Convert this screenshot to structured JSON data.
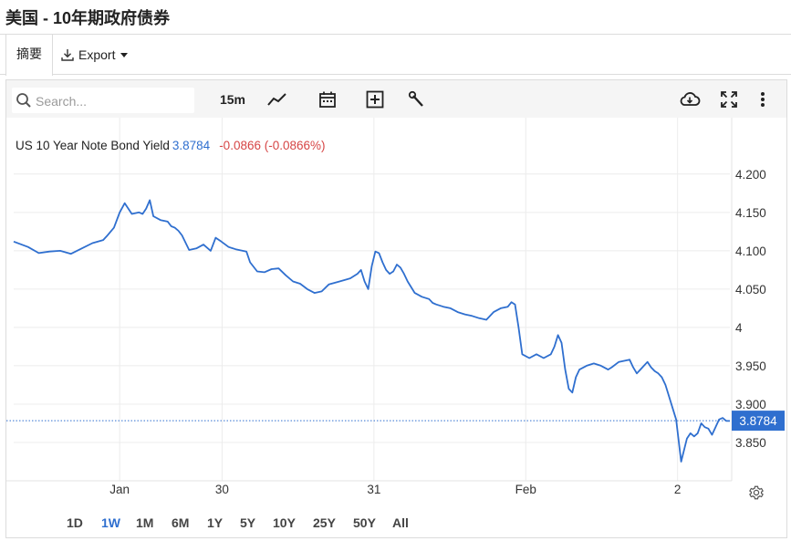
{
  "page": {
    "title": "美国 - 10年期政府债券"
  },
  "tabs": {
    "summary": "摘要",
    "export": "Export"
  },
  "toolbar": {
    "search_placeholder": "Search...",
    "interval": "15m",
    "icons": [
      "search-icon",
      "line-chart-icon",
      "calendar-icon",
      "add-indicator-icon",
      "wrench-icon",
      "download-cloud-icon",
      "fullscreen-icon",
      "more-vert-icon"
    ]
  },
  "legend": {
    "name": "US 10 Year Note Bond Yield",
    "value": "3.8784",
    "change": "-0.0866 (-0.0866%)"
  },
  "range_buttons": [
    "1D",
    "1W",
    "1M",
    "6M",
    "1Y",
    "5Y",
    "10Y",
    "25Y",
    "50Y",
    "All"
  ],
  "active_range": "1W",
  "colors": {
    "line": "#2f6fcf",
    "negative": "#d64545",
    "badge": "#2f6fcf"
  },
  "chart_data": {
    "type": "line",
    "series": [
      {
        "name": "US 10 Year Note Bond Yield",
        "points": [
          [
            0.0,
            4.112
          ],
          [
            0.02,
            4.105
          ],
          [
            0.035,
            4.097
          ],
          [
            0.05,
            4.099
          ],
          [
            0.065,
            4.1
          ],
          [
            0.08,
            4.096
          ],
          [
            0.095,
            4.103
          ],
          [
            0.11,
            4.11
          ],
          [
            0.125,
            4.114
          ],
          [
            0.13,
            4.119
          ],
          [
            0.14,
            4.13
          ],
          [
            0.148,
            4.15
          ],
          [
            0.155,
            4.162
          ],
          [
            0.16,
            4.155
          ],
          [
            0.165,
            4.148
          ],
          [
            0.175,
            4.15
          ],
          [
            0.18,
            4.148
          ],
          [
            0.185,
            4.155
          ],
          [
            0.19,
            4.166
          ],
          [
            0.195,
            4.145
          ],
          [
            0.205,
            4.14
          ],
          [
            0.215,
            4.138
          ],
          [
            0.22,
            4.132
          ],
          [
            0.225,
            4.13
          ],
          [
            0.23,
            4.126
          ],
          [
            0.235,
            4.12
          ],
          [
            0.245,
            4.101
          ],
          [
            0.255,
            4.103
          ],
          [
            0.265,
            4.108
          ],
          [
            0.275,
            4.1
          ],
          [
            0.282,
            4.117
          ],
          [
            0.29,
            4.112
          ],
          [
            0.3,
            4.105
          ],
          [
            0.31,
            4.102
          ],
          [
            0.325,
            4.099
          ],
          [
            0.33,
            4.085
          ],
          [
            0.34,
            4.073
          ],
          [
            0.35,
            4.072
          ],
          [
            0.36,
            4.076
          ],
          [
            0.37,
            4.077
          ],
          [
            0.38,
            4.068
          ],
          [
            0.39,
            4.06
          ],
          [
            0.4,
            4.057
          ],
          [
            0.41,
            4.05
          ],
          [
            0.42,
            4.045
          ],
          [
            0.43,
            4.047
          ],
          [
            0.44,
            4.056
          ],
          [
            0.455,
            4.06
          ],
          [
            0.47,
            4.064
          ],
          [
            0.48,
            4.07
          ],
          [
            0.485,
            4.075
          ],
          [
            0.49,
            4.06
          ],
          [
            0.495,
            4.05
          ],
          [
            0.5,
            4.08
          ],
          [
            0.505,
            4.099
          ],
          [
            0.51,
            4.097
          ],
          [
            0.515,
            4.085
          ],
          [
            0.52,
            4.075
          ],
          [
            0.525,
            4.07
          ],
          [
            0.53,
            4.073
          ],
          [
            0.535,
            4.082
          ],
          [
            0.54,
            4.078
          ],
          [
            0.545,
            4.07
          ],
          [
            0.55,
            4.06
          ],
          [
            0.56,
            4.045
          ],
          [
            0.57,
            4.04
          ],
          [
            0.58,
            4.037
          ],
          [
            0.585,
            4.032
          ],
          [
            0.59,
            4.03
          ],
          [
            0.6,
            4.027
          ],
          [
            0.61,
            4.025
          ],
          [
            0.62,
            4.02
          ],
          [
            0.63,
            4.017
          ],
          [
            0.64,
            4.015
          ],
          [
            0.65,
            4.012
          ],
          [
            0.66,
            4.01
          ],
          [
            0.67,
            4.02
          ],
          [
            0.68,
            4.025
          ],
          [
            0.69,
            4.027
          ],
          [
            0.695,
            4.033
          ],
          [
            0.7,
            4.03
          ],
          [
            0.705,
            4.0
          ],
          [
            0.71,
            3.965
          ],
          [
            0.72,
            3.96
          ],
          [
            0.73,
            3.965
          ],
          [
            0.74,
            3.96
          ],
          [
            0.75,
            3.965
          ],
          [
            0.755,
            3.975
          ],
          [
            0.76,
            3.99
          ],
          [
            0.765,
            3.98
          ],
          [
            0.77,
            3.945
          ],
          [
            0.775,
            3.92
          ],
          [
            0.78,
            3.915
          ],
          [
            0.785,
            3.935
          ],
          [
            0.79,
            3.945
          ],
          [
            0.8,
            3.95
          ],
          [
            0.81,
            3.953
          ],
          [
            0.82,
            3.95
          ],
          [
            0.83,
            3.945
          ],
          [
            0.835,
            3.948
          ],
          [
            0.845,
            3.955
          ],
          [
            0.86,
            3.958
          ],
          [
            0.865,
            3.948
          ],
          [
            0.87,
            3.94
          ],
          [
            0.875,
            3.945
          ],
          [
            0.88,
            3.95
          ],
          [
            0.885,
            3.955
          ],
          [
            0.89,
            3.948
          ],
          [
            0.895,
            3.943
          ],
          [
            0.9,
            3.94
          ],
          [
            0.905,
            3.935
          ],
          [
            0.91,
            3.925
          ],
          [
            0.915,
            3.91
          ],
          [
            0.92,
            3.895
          ],
          [
            0.925,
            3.88
          ],
          [
            0.93,
            3.84
          ],
          [
            0.932,
            3.825
          ],
          [
            0.94,
            3.855
          ],
          [
            0.945,
            3.862
          ],
          [
            0.95,
            3.858
          ],
          [
            0.955,
            3.862
          ],
          [
            0.96,
            3.875
          ],
          [
            0.965,
            3.87
          ],
          [
            0.97,
            3.868
          ],
          [
            0.975,
            3.86
          ],
          [
            0.98,
            3.87
          ],
          [
            0.985,
            3.88
          ],
          [
            0.99,
            3.882
          ],
          [
            0.995,
            3.878
          ],
          [
            1.0,
            3.878
          ]
        ]
      }
    ],
    "ylim": [
      3.8,
      4.22
    ],
    "yticks": [
      "4.200",
      "4.150",
      "4.100",
      "4.050",
      "4",
      "3.950",
      "3.900",
      "3.850"
    ],
    "ytick_values": [
      4.2,
      4.15,
      4.1,
      4.05,
      4.0,
      3.95,
      3.9,
      3.85
    ],
    "xticks": [
      "Jan",
      "30",
      "31",
      "Feb",
      "2"
    ],
    "xtick_fractions": [
      0.148,
      0.291,
      0.503,
      0.715,
      0.927
    ],
    "last_value": 3.8784,
    "last_value_label": "3.8784",
    "grid": true
  }
}
